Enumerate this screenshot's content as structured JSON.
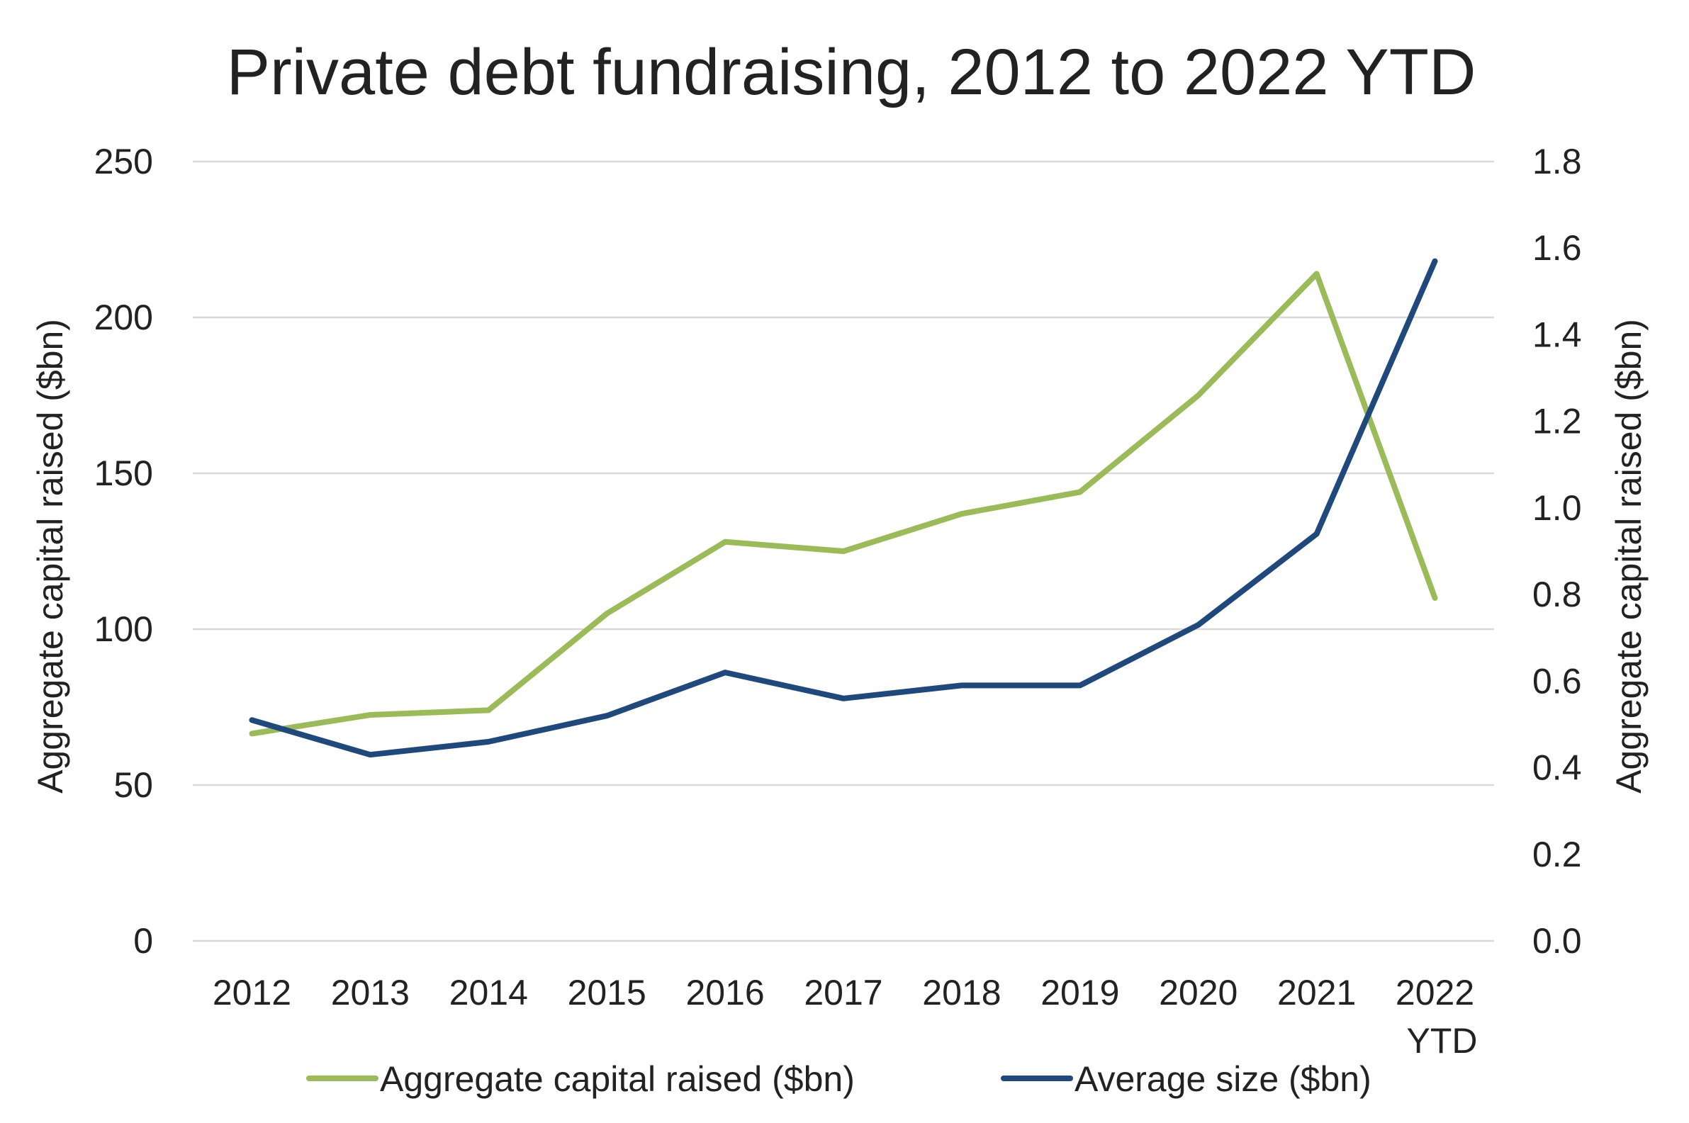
{
  "chart_data": {
    "type": "line",
    "title": "Private debt fundraising, 2012 to 2022 YTD",
    "categories": [
      "2012",
      "2013",
      "2014",
      "2015",
      "2016",
      "2017",
      "2018",
      "2019",
      "2020",
      "2021",
      "2022 YTD"
    ],
    "category_lines": [
      [
        "2012"
      ],
      [
        "2013"
      ],
      [
        "2014"
      ],
      [
        "2015"
      ],
      [
        "2016"
      ],
      [
        "2017"
      ],
      [
        "2018"
      ],
      [
        "2019"
      ],
      [
        "2020"
      ],
      [
        "2021"
      ],
      [
        "2022",
        "YTD"
      ]
    ],
    "ylabel_left": "Aggregate capital raised ($bn)",
    "ylabel_right": "Aggregate capital raised ($bn)",
    "ylim_left": [
      0,
      250
    ],
    "ylim_right": [
      0,
      1.8
    ],
    "yticks_left": [
      "0",
      "50",
      "100",
      "150",
      "200",
      "250"
    ],
    "yticks_right": [
      "0.0",
      "0.2",
      "0.4",
      "0.6",
      "0.8",
      "1.0",
      "1.2",
      "1.4",
      "1.6",
      "1.8"
    ],
    "grid": true,
    "legend_position": "bottom",
    "series": [
      {
        "name": "Aggregate capital raised ($bn)",
        "axis": "left",
        "color": "#9bbb59",
        "values": [
          66.5,
          72.5,
          74,
          105,
          128,
          125,
          137,
          144,
          175,
          214,
          110
        ]
      },
      {
        "name": "Average size ($bn)",
        "axis": "right",
        "color": "#1f497d",
        "values": [
          0.51,
          0.43,
          0.46,
          0.52,
          0.62,
          0.56,
          0.59,
          0.59,
          0.73,
          0.94,
          1.57
        ]
      }
    ]
  }
}
